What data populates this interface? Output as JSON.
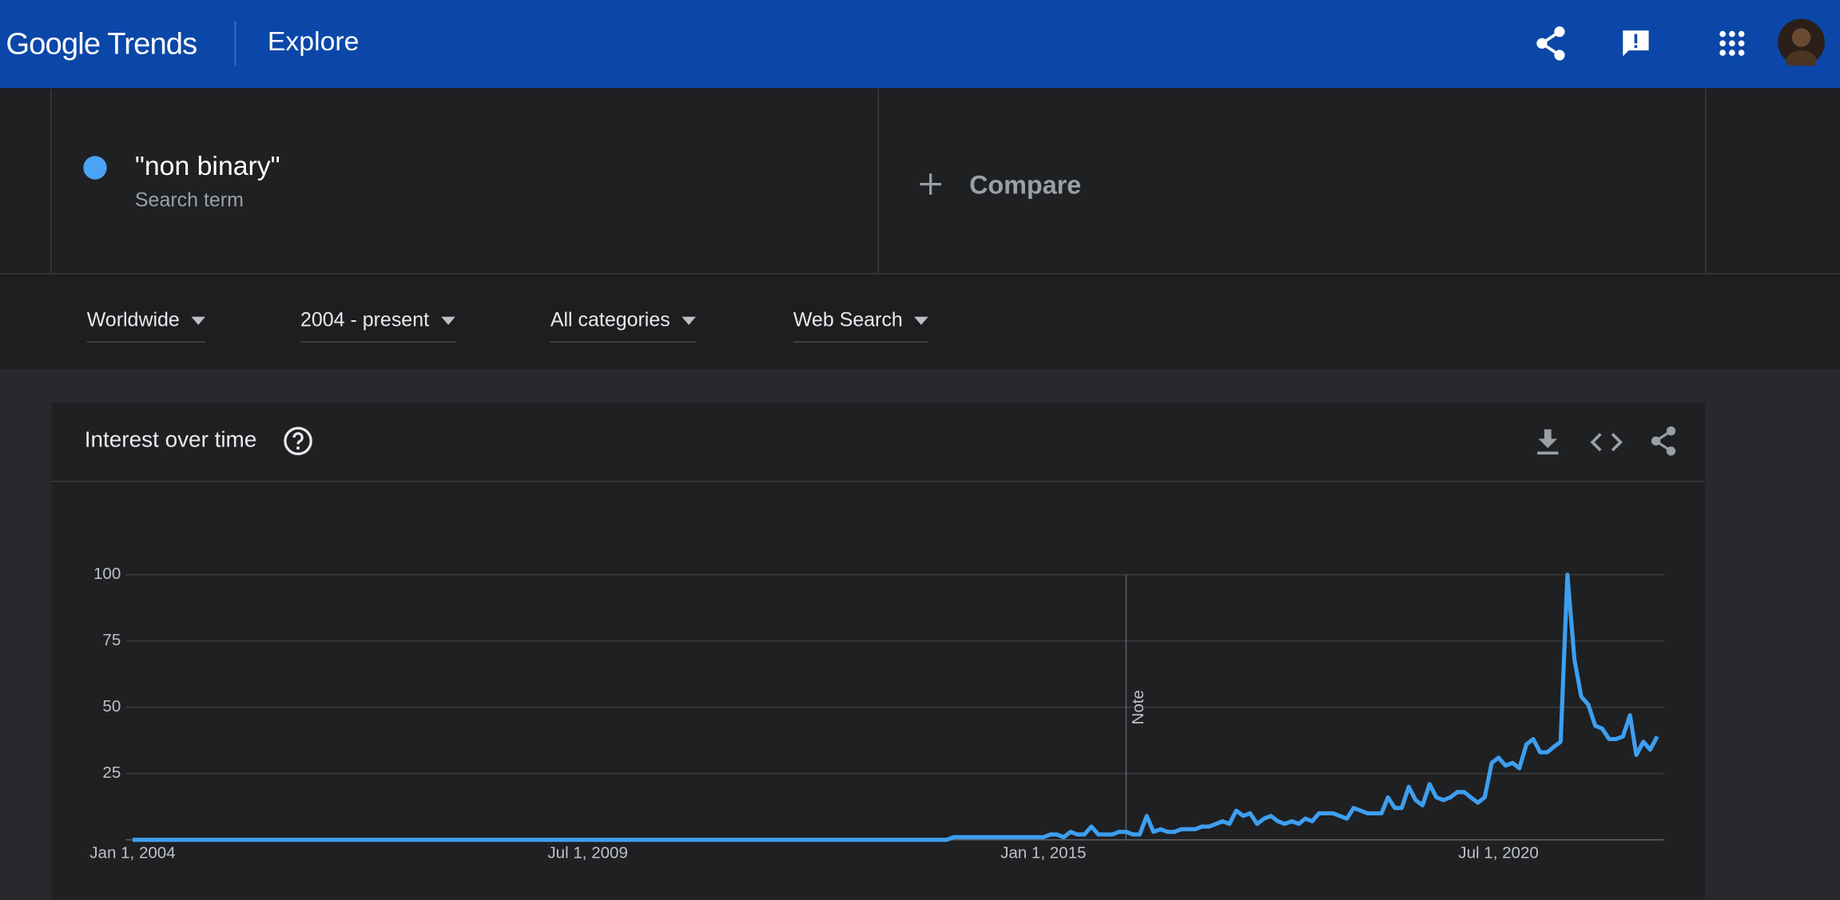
{
  "header": {
    "logo": "Google Trends",
    "page": "Explore"
  },
  "search": {
    "term_type": "Search term",
    "compare": "Compare"
  },
  "filters": [
    "Worldwide",
    "2004 - present",
    "All categories",
    "Web Search"
  ],
  "card": {
    "title": "Interest over time"
  },
  "chart_data": {
    "type": "line",
    "x": [
      "2004-01-01",
      "2004-02-01",
      "2004-03-01",
      "2004-04-01",
      "2004-05-01",
      "2004-06-01",
      "2004-07-01",
      "2004-08-01",
      "2004-09-01",
      "2004-10-01",
      "2004-11-01",
      "2004-12-01",
      "2005-01-01",
      "2005-02-01",
      "2005-03-01",
      "2005-04-01",
      "2005-05-01",
      "2005-06-01",
      "2005-07-01",
      "2005-08-01",
      "2005-09-01",
      "2005-10-01",
      "2005-11-01",
      "2005-12-01",
      "2006-01-01",
      "2006-02-01",
      "2006-03-01",
      "2006-04-01",
      "2006-05-01",
      "2006-06-01",
      "2006-07-01",
      "2006-08-01",
      "2006-09-01",
      "2006-10-01",
      "2006-11-01",
      "2006-12-01",
      "2007-01-01",
      "2007-02-01",
      "2007-03-01",
      "2007-04-01",
      "2007-05-01",
      "2007-06-01",
      "2007-07-01",
      "2007-08-01",
      "2007-09-01",
      "2007-10-01",
      "2007-11-01",
      "2007-12-01",
      "2008-01-01",
      "2008-02-01",
      "2008-03-01",
      "2008-04-01",
      "2008-05-01",
      "2008-06-01",
      "2008-07-01",
      "2008-08-01",
      "2008-09-01",
      "2008-10-01",
      "2008-11-01",
      "2008-12-01",
      "2009-01-01",
      "2009-02-01",
      "2009-03-01",
      "2009-04-01",
      "2009-05-01",
      "2009-06-01",
      "2009-07-01",
      "2009-08-01",
      "2009-09-01",
      "2009-10-01",
      "2009-11-01",
      "2009-12-01",
      "2010-01-01",
      "2010-02-01",
      "2010-03-01",
      "2010-04-01",
      "2010-05-01",
      "2010-06-01",
      "2010-07-01",
      "2010-08-01",
      "2010-09-01",
      "2010-10-01",
      "2010-11-01",
      "2010-12-01",
      "2011-01-01",
      "2011-02-01",
      "2011-03-01",
      "2011-04-01",
      "2011-05-01",
      "2011-06-01",
      "2011-07-01",
      "2011-08-01",
      "2011-09-01",
      "2011-10-01",
      "2011-11-01",
      "2011-12-01",
      "2012-01-01",
      "2012-02-01",
      "2012-03-01",
      "2012-04-01",
      "2012-05-01",
      "2012-06-01",
      "2012-07-01",
      "2012-08-01",
      "2012-09-01",
      "2012-10-01",
      "2012-11-01",
      "2012-12-01",
      "2013-01-01",
      "2013-02-01",
      "2013-03-01",
      "2013-04-01",
      "2013-05-01",
      "2013-06-01",
      "2013-07-01",
      "2013-08-01",
      "2013-09-01",
      "2013-10-01",
      "2013-11-01",
      "2013-12-01",
      "2014-01-01",
      "2014-02-01",
      "2014-03-01",
      "2014-04-01",
      "2014-05-01",
      "2014-06-01",
      "2014-07-01",
      "2014-08-01",
      "2014-09-01",
      "2014-10-01",
      "2014-11-01",
      "2014-12-01",
      "2015-01-01",
      "2015-02-01",
      "2015-03-01",
      "2015-04-01",
      "2015-05-01",
      "2015-06-01",
      "2015-07-01",
      "2015-08-01",
      "2015-09-01",
      "2015-10-01",
      "2015-11-01",
      "2015-12-01",
      "2016-01-01",
      "2016-02-01",
      "2016-03-01",
      "2016-04-01",
      "2016-05-01",
      "2016-06-01",
      "2016-07-01",
      "2016-08-01",
      "2016-09-01",
      "2016-10-01",
      "2016-11-01",
      "2016-12-01",
      "2017-01-01",
      "2017-02-01",
      "2017-03-01",
      "2017-04-01",
      "2017-05-01",
      "2017-06-01",
      "2017-07-01",
      "2017-08-01",
      "2017-09-01",
      "2017-10-01",
      "2017-11-01",
      "2017-12-01",
      "2018-01-01",
      "2018-02-01",
      "2018-03-01",
      "2018-04-01",
      "2018-05-01",
      "2018-06-01",
      "2018-07-01",
      "2018-08-01",
      "2018-09-01",
      "2018-10-01",
      "2018-11-01",
      "2018-12-01",
      "2019-01-01",
      "2019-02-01",
      "2019-03-01",
      "2019-04-01",
      "2019-05-01",
      "2019-06-01",
      "2019-07-01",
      "2019-08-01",
      "2019-09-01",
      "2019-10-01",
      "2019-11-01",
      "2019-12-01",
      "2020-01-01",
      "2020-02-01",
      "2020-03-01",
      "2020-04-01",
      "2020-05-01",
      "2020-06-01",
      "2020-07-01",
      "2020-08-01",
      "2020-09-01",
      "2020-10-01",
      "2020-11-01",
      "2020-12-01",
      "2021-01-01",
      "2021-02-01",
      "2021-03-01",
      "2021-04-01",
      "2021-05-01",
      "2021-06-01",
      "2021-07-01",
      "2021-08-01",
      "2021-09-01",
      "2021-10-01",
      "2021-11-01",
      "2021-12-01",
      "2022-01-01",
      "2022-02-01",
      "2022-03-01",
      "2022-04-01",
      "2022-05-01",
      "2022-06-01"
    ],
    "series": [
      {
        "name": "\"non binary\"",
        "color": "#3d9ff0",
        "values": [
          0,
          0,
          0,
          0,
          0,
          0,
          0,
          0,
          0,
          0,
          0,
          0,
          0,
          0,
          0,
          0,
          0,
          0,
          0,
          0,
          0,
          0,
          0,
          0,
          0,
          0,
          0,
          0,
          0,
          0,
          0,
          0,
          0,
          0,
          0,
          0,
          0,
          0,
          0,
          0,
          0,
          0,
          0,
          0,
          0,
          0,
          0,
          0,
          0,
          0,
          0,
          0,
          0,
          0,
          0,
          0,
          0,
          0,
          0,
          0,
          0,
          0,
          0,
          0,
          0,
          0,
          0,
          0,
          0,
          0,
          0,
          0,
          0,
          0,
          0,
          0,
          0,
          0,
          0,
          0,
          0,
          0,
          0,
          0,
          0,
          0,
          0,
          0,
          0,
          0,
          0,
          0,
          0,
          0,
          0,
          0,
          0,
          0,
          0,
          0,
          0,
          0,
          0,
          0,
          0,
          0,
          0,
          0,
          0,
          0,
          0,
          0,
          0,
          0,
          0,
          0,
          0,
          0,
          0,
          1,
          1,
          1,
          1,
          1,
          1,
          1,
          1,
          1,
          1,
          1,
          1,
          1,
          1,
          2,
          2,
          1,
          3,
          2,
          2,
          5,
          2,
          2,
          2,
          3,
          3,
          2,
          2,
          9,
          3,
          4,
          3,
          3,
          4,
          4,
          4,
          5,
          5,
          6,
          7,
          6,
          11,
          9,
          10,
          6,
          8,
          9,
          7,
          6,
          7,
          6,
          8,
          7,
          10,
          10,
          10,
          9,
          8,
          12,
          11,
          10,
          10,
          10,
          16,
          12,
          12,
          20,
          15,
          13,
          21,
          16,
          15,
          16,
          18,
          18,
          16,
          14,
          16,
          29,
          31,
          28,
          29,
          27,
          36,
          38,
          33,
          33,
          35,
          37,
          100,
          68,
          54,
          51,
          43,
          42,
          38,
          38,
          39,
          47,
          32,
          37,
          34,
          39
        ]
      }
    ],
    "xlim": [
      "2004-01-01",
      "2022-07-01"
    ],
    "xticks": [
      {
        "value": "2004-01-01",
        "label": "Jan 1, 2004"
      },
      {
        "value": "2009-07-01",
        "label": "Jul 1, 2009"
      },
      {
        "value": "2015-01-01",
        "label": "Jan 1, 2015"
      },
      {
        "value": "2020-07-01",
        "label": "Jul 1, 2020"
      }
    ],
    "ylim": [
      0,
      100
    ],
    "yticks": [
      25,
      50,
      75,
      100
    ],
    "grid": true,
    "annotations": [
      {
        "x": "2016-01-01",
        "text": "Note"
      }
    ]
  }
}
